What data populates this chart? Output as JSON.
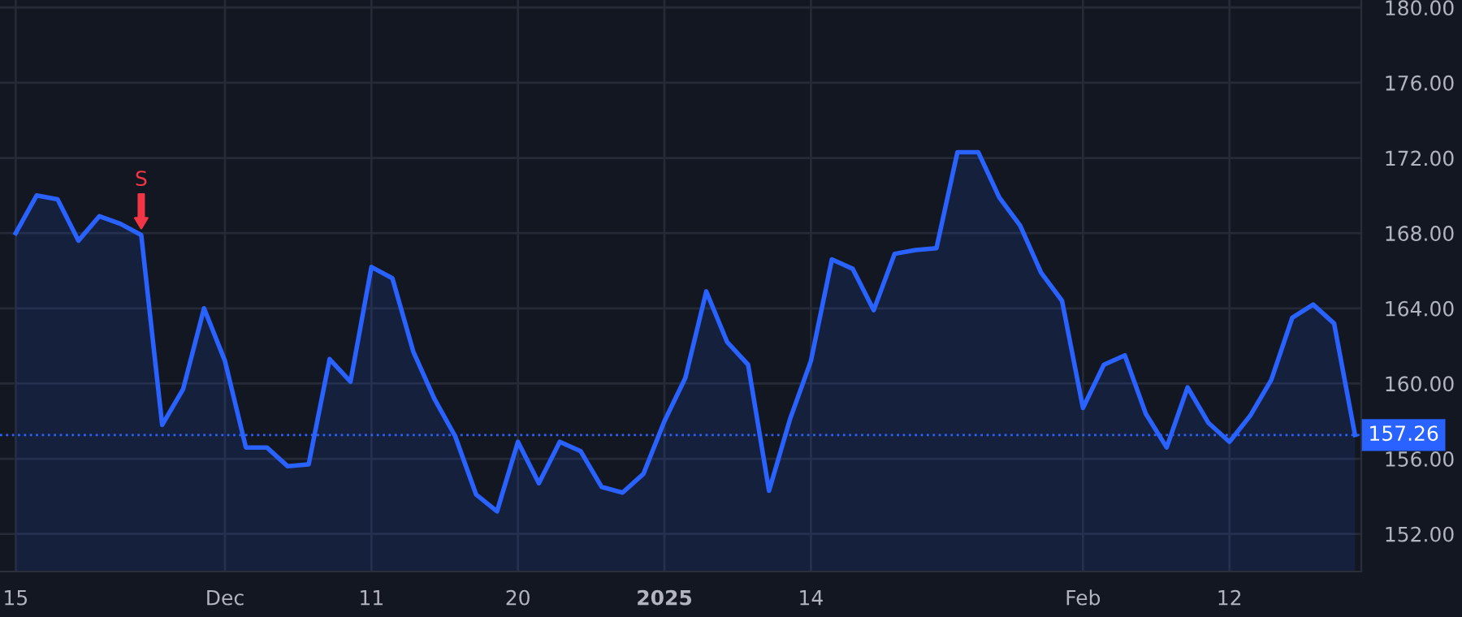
{
  "chart_data": {
    "type": "area",
    "categories": [
      "15",
      null,
      null,
      null,
      null,
      null,
      null,
      null,
      null,
      null,
      "Dec",
      null,
      null,
      null,
      null,
      null,
      null,
      "11",
      null,
      null,
      null,
      null,
      null,
      null,
      "20",
      null,
      null,
      null,
      null,
      null,
      null,
      "2025",
      null,
      null,
      null,
      null,
      null,
      null,
      "14",
      null,
      null,
      null,
      null,
      null,
      null,
      null,
      null,
      null,
      null,
      null,
      null,
      "Feb",
      null,
      null,
      null,
      null,
      null,
      null,
      "12",
      null,
      null,
      null,
      null,
      null,
      null
    ],
    "series": [
      {
        "color": "#2962ff",
        "values": [
          168.0,
          170.0,
          169.8,
          167.6,
          168.9,
          168.5,
          167.9,
          157.8,
          159.7,
          164.0,
          161.2,
          156.6,
          156.6,
          155.6,
          155.7,
          161.3,
          160.1,
          166.2,
          165.6,
          161.7,
          159.2,
          157.2,
          154.1,
          153.2,
          156.9,
          154.7,
          156.9,
          156.4,
          154.5,
          154.2,
          155.2,
          158.0,
          160.3,
          164.9,
          162.2,
          161.0,
          154.3,
          158.1,
          161.2,
          166.6,
          166.1,
          163.9,
          166.9,
          167.1,
          167.2,
          172.3,
          172.3,
          169.9,
          168.4,
          165.9,
          164.4,
          158.7,
          161.0,
          161.5,
          158.4,
          156.6,
          159.8,
          157.9,
          156.9,
          158.3,
          160.2,
          163.5,
          164.2,
          163.2,
          157.26
        ]
      }
    ],
    "ylim": [
      150,
      180.4
    ],
    "yticks": [
      {
        "value": 152,
        "label": "152.00"
      },
      {
        "value": 156,
        "label": "156.00"
      },
      {
        "value": 160,
        "label": "160.00"
      },
      {
        "value": 164,
        "label": "164.00"
      },
      {
        "value": 168,
        "label": "168.00"
      },
      {
        "value": 172,
        "label": "172.00"
      },
      {
        "value": 176,
        "label": "176.00"
      },
      {
        "value": 180,
        "label": "180.00"
      }
    ],
    "grid": true,
    "ref_lines": [
      {
        "axis": "y",
        "value": 157.26,
        "label": "157.26",
        "color": "#2962ff",
        "line_style": "dotted"
      }
    ],
    "annotations": [
      {
        "text": "S",
        "y": 167.9
      }
    ]
  }
}
